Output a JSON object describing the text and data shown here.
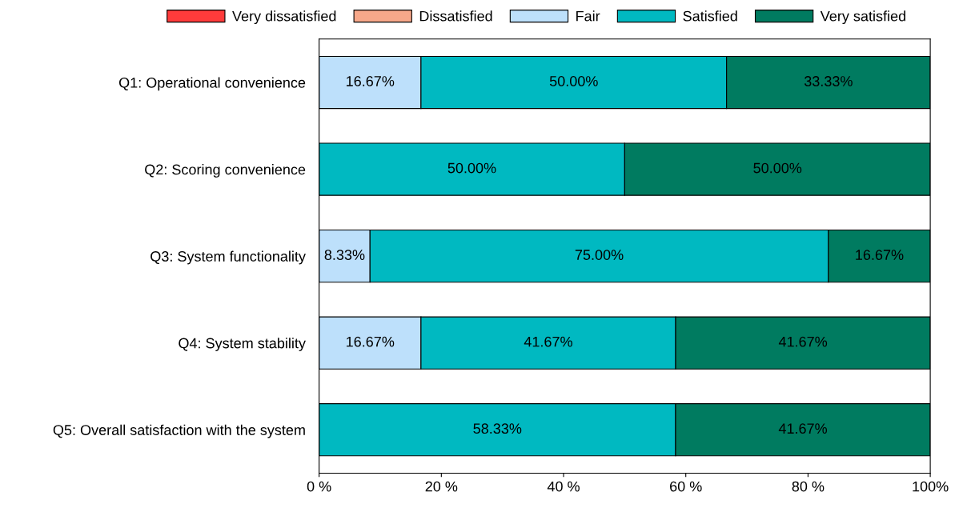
{
  "chart_data": {
    "type": "bar",
    "orientation": "horizontal",
    "stacked": true,
    "legend": "top",
    "grid": false,
    "categories": [
      "Q1: Operational convenience",
      "Q2: Scoring convenience",
      "Q3: System functionality",
      "Q4: System stability",
      "Q5: Overall satisfaction with the system"
    ],
    "xlim": [
      0,
      100
    ],
    "xticks": [
      {
        "value": 0,
        "label": "0 %"
      },
      {
        "value": 20,
        "label": "20 %"
      },
      {
        "value": 40,
        "label": "40 %"
      },
      {
        "value": 60,
        "label": "60 %"
      },
      {
        "value": 80,
        "label": "80 %"
      },
      {
        "value": 100,
        "label": "100%"
      }
    ],
    "series": [
      {
        "name": "Very dissatisfied",
        "color": "#ff3b3b",
        "values": [
          0,
          0,
          0,
          0,
          0
        ],
        "value_labels": [
          null,
          null,
          null,
          null,
          null
        ]
      },
      {
        "name": "Dissatisfied",
        "color": "#f7a88a",
        "values": [
          0,
          0,
          0,
          0,
          0
        ],
        "value_labels": [
          null,
          null,
          null,
          null,
          null
        ]
      },
      {
        "name": "Fair",
        "color": "#bde0fb",
        "values": [
          16.67,
          0,
          8.33,
          16.67,
          0
        ],
        "value_labels": [
          "16.67%",
          null,
          "8.33%",
          "16.67%",
          null
        ]
      },
      {
        "name": "Satisfied",
        "color": "#00b9c1",
        "values": [
          50,
          50,
          75,
          41.67,
          58.33
        ],
        "value_labels": [
          "50.00%",
          "50.00%",
          "75.00%",
          "41.67%",
          "58.33%"
        ]
      },
      {
        "name": "Very satisfied",
        "color": "#007b60",
        "values": [
          33.33,
          50,
          16.67,
          41.67,
          41.67
        ],
        "value_labels": [
          "33.33%",
          "50.00%",
          "16.67%",
          "41.67%",
          "41.67%"
        ]
      }
    ]
  }
}
